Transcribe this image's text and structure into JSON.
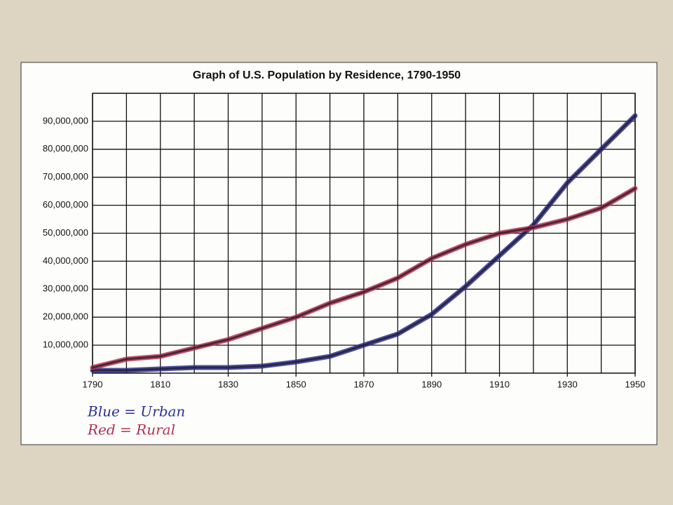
{
  "chart_data": {
    "type": "line",
    "title": "Graph of U.S. Population by Residence, 1790-1950",
    "x": [
      1790,
      1800,
      1810,
      1820,
      1830,
      1840,
      1850,
      1860,
      1870,
      1880,
      1890,
      1900,
      1910,
      1920,
      1930,
      1940,
      1950
    ],
    "series": [
      {
        "name": "Blue = Urban",
        "color": "#2b3192",
        "values": [
          1000000,
          1000000,
          1500000,
          2000000,
          2000000,
          2500000,
          4000000,
          6000000,
          10000000,
          14000000,
          21000000,
          31000000,
          42000000,
          53000000,
          68000000,
          80000000,
          92000000
        ]
      },
      {
        "name": "Red = Rural",
        "color": "#b3304f",
        "values": [
          2000000,
          5000000,
          6000000,
          9000000,
          12000000,
          16000000,
          20000000,
          25000000,
          29000000,
          34000000,
          41000000,
          46000000,
          50000000,
          52000000,
          55000000,
          59000000,
          66000000
        ]
      }
    ],
    "xlim": [
      1790,
      1950
    ],
    "xticks": [
      1790,
      1810,
      1830,
      1850,
      1870,
      1890,
      1910,
      1930,
      1950
    ],
    "ylim": [
      0,
      100000000
    ],
    "yticks": [
      {
        "value": 10000000,
        "label": "10,000,000"
      },
      {
        "value": 20000000,
        "label": "20,000,000"
      },
      {
        "value": 30000000,
        "label": "30,000,000"
      },
      {
        "value": 40000000,
        "label": "40,000,000"
      },
      {
        "value": 50000000,
        "label": "50,000,000"
      },
      {
        "value": 60000000,
        "label": "60,000,000"
      },
      {
        "value": 70000000,
        "label": "70,000,000"
      },
      {
        "value": 80000000,
        "label": "80,000,000"
      },
      {
        "value": 90000000,
        "label": "90,000,000"
      }
    ],
    "grid": true
  }
}
